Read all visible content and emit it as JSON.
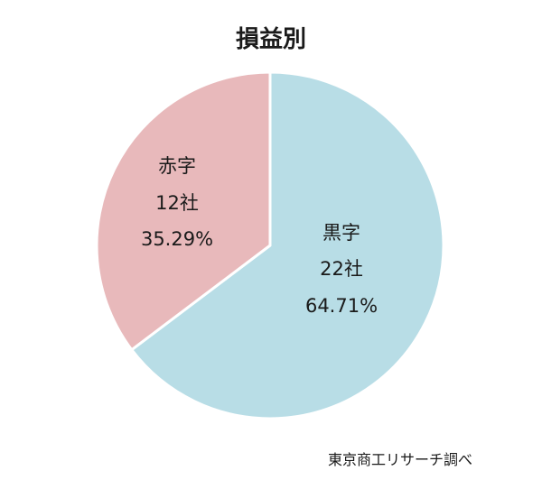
{
  "chart_data": {
    "type": "pie",
    "title": "損益別",
    "categories": [
      "黒字",
      "赤字"
    ],
    "values": [
      22,
      12
    ],
    "unit": "社",
    "percentages": [
      "64.71%",
      "35.29%"
    ],
    "count_labels": [
      "22社",
      "12社"
    ],
    "colors": [
      "#b8dde6",
      "#e8b9bb"
    ],
    "start_angle_deg": 0,
    "direction": "clockwise"
  },
  "source": "東京商工リサーチ調べ"
}
